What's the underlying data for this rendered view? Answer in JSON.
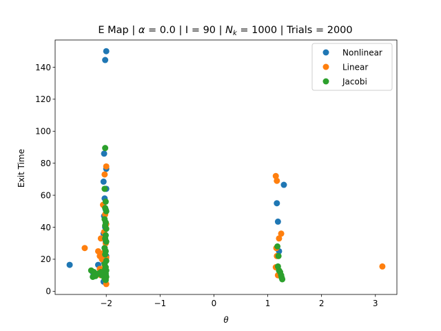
{
  "chart_data": {
    "type": "scatter",
    "title_parts": {
      "pre": "E Map | ",
      "alpha_sym": "α",
      "alpha_rest": " = 0.0 | I = 90 | ",
      "nk_sym": "N",
      "nk_sub": "k",
      "post": " = 1000 | Trials = 2000"
    },
    "xlabel": "θ",
    "ylabel": "Exit Time",
    "xlim": [
      -2.95,
      3.4
    ],
    "ylim": [
      -2,
      157
    ],
    "xticks": [
      -2,
      -1,
      0,
      1,
      2,
      3
    ],
    "xtick_labels": [
      "−2",
      "−1",
      "0",
      "1",
      "2",
      "3"
    ],
    "yticks": [
      0,
      20,
      40,
      60,
      80,
      100,
      120,
      140
    ],
    "ytick_labels": [
      "0",
      "20",
      "40",
      "60",
      "80",
      "100",
      "120",
      "140"
    ],
    "legend_position": "top-right",
    "series": [
      {
        "name": "Nonlinear",
        "color": "#1f77b4",
        "points": [
          [
            -2.0,
            150
          ],
          [
            -2.02,
            144.5
          ],
          [
            -2.04,
            86
          ],
          [
            -2.0,
            76.5
          ],
          [
            -2.05,
            68.5
          ],
          [
            -2.0,
            64
          ],
          [
            -2.03,
            58
          ],
          [
            -2.01,
            51
          ],
          [
            -2.04,
            47
          ],
          [
            -2.02,
            40
          ],
          [
            -2.05,
            36
          ],
          [
            -2.01,
            31
          ],
          [
            -2.03,
            27
          ],
          [
            -2.0,
            22
          ],
          [
            -2.04,
            18
          ],
          [
            -2.02,
            14
          ],
          [
            -2.01,
            10
          ],
          [
            -2.05,
            6
          ],
          [
            -2.68,
            16.5
          ],
          [
            -2.15,
            16.5
          ],
          [
            -2.25,
            12
          ],
          [
            1.3,
            66.5
          ],
          [
            1.17,
            55
          ],
          [
            1.19,
            43.5
          ],
          [
            1.21,
            25
          ]
        ]
      },
      {
        "name": "Linear",
        "color": "#ff7f0e",
        "points": [
          [
            -2.4,
            27
          ],
          [
            -2.1,
            33
          ],
          [
            -2.15,
            25
          ],
          [
            -2.12,
            22
          ],
          [
            -2.08,
            20
          ],
          [
            -2.0,
            78
          ],
          [
            -2.03,
            73
          ],
          [
            -2.06,
            54
          ],
          [
            -2.02,
            48
          ],
          [
            -2.0,
            42
          ],
          [
            -2.04,
            37
          ],
          [
            -2.01,
            30
          ],
          [
            -2.05,
            24
          ],
          [
            -2.0,
            21
          ],
          [
            -2.03,
            16
          ],
          [
            -2.06,
            12
          ],
          [
            -2.01,
            8
          ],
          [
            -2.0,
            4.5
          ],
          [
            -2.12,
            14
          ],
          [
            -2.1,
            10
          ],
          [
            1.15,
            72
          ],
          [
            1.17,
            69
          ],
          [
            1.25,
            36
          ],
          [
            1.21,
            33
          ],
          [
            1.16,
            27
          ],
          [
            1.17,
            22
          ],
          [
            1.15,
            15
          ],
          [
            1.19,
            10
          ],
          [
            3.13,
            15.5
          ]
        ]
      },
      {
        "name": "Jacobi",
        "color": "#2ca02c",
        "points": [
          [
            -2.02,
            89.5
          ],
          [
            -2.03,
            64
          ],
          [
            -2.01,
            56
          ],
          [
            -2.02,
            52
          ],
          [
            -2.0,
            50
          ],
          [
            -2.03,
            45
          ],
          [
            -2.01,
            43
          ],
          [
            -2.02,
            41
          ],
          [
            -2.0,
            39
          ],
          [
            -2.01,
            35
          ],
          [
            -2.02,
            33
          ],
          [
            -2.0,
            31
          ],
          [
            -2.03,
            27
          ],
          [
            -2.01,
            25
          ],
          [
            -2.02,
            23
          ],
          [
            -2.0,
            19
          ],
          [
            -2.03,
            17
          ],
          [
            -2.01,
            15
          ],
          [
            -2.02,
            14
          ],
          [
            -2.0,
            13
          ],
          [
            -2.03,
            12
          ],
          [
            -2.01,
            11
          ],
          [
            -2.02,
            10
          ],
          [
            -2.0,
            9
          ],
          [
            -2.03,
            8
          ],
          [
            -2.01,
            7
          ],
          [
            -2.1,
            12
          ],
          [
            -2.08,
            10
          ],
          [
            -2.15,
            11
          ],
          [
            -2.2,
            9.5
          ],
          [
            -2.23,
            12
          ],
          [
            -2.28,
            13
          ],
          [
            -2.25,
            9
          ],
          [
            1.18,
            28
          ],
          [
            1.2,
            22
          ],
          [
            1.19,
            15.5
          ],
          [
            1.21,
            13
          ],
          [
            1.23,
            12
          ],
          [
            1.25,
            10
          ],
          [
            1.26,
            8.5
          ],
          [
            1.27,
            7.5
          ]
        ]
      }
    ]
  }
}
